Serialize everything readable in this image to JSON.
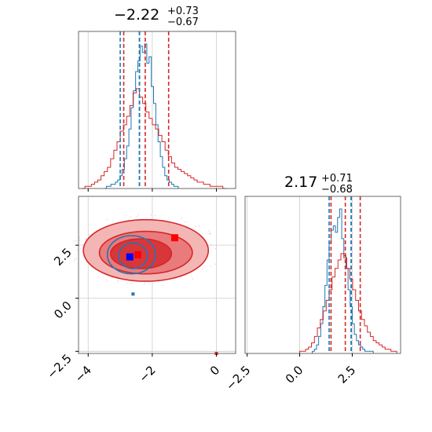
{
  "chart_data": {
    "type": "corner",
    "parameters": [
      {
        "name": "",
        "title": {
          "median": "−2.22",
          "plus": "+0.73",
          "minus": "−0.67"
        },
        "range": [
          -4.3,
          0.6
        ],
        "ticks": [
          {
            "value": -4,
            "label": "−4"
          },
          {
            "value": -2,
            "label": "−2"
          },
          {
            "value": 0,
            "label": "0"
          }
        ],
        "quantile_lines": {
          "blue": [
            -3.0,
            -2.4,
            -2.4
          ],
          "red": [
            -2.89,
            -2.22,
            -1.49
          ]
        }
      },
      {
        "name": "",
        "title": {
          "median": "2.17",
          "plus": "+0.71",
          "minus": "−0.68"
        },
        "range": [
          -2.6,
          4.8
        ],
        "ticks": [
          {
            "value": -2.5,
            "label": "−2.5"
          },
          {
            "value": 0,
            "label": "0.0"
          },
          {
            "value": 2.5,
            "label": "2.5"
          }
        ],
        "quantile_lines": {
          "blue": [
            1.4,
            2.45,
            2.45
          ],
          "red": [
            1.49,
            2.17,
            2.88
          ]
        }
      }
    ],
    "joint": {
      "x_range": [
        -4.3,
        0.6
      ],
      "y_range": [
        -2.6,
        4.8
      ],
      "y_ticks": [
        {
          "value": -2.5,
          "label": "−2.5"
        },
        {
          "value": 0,
          "label": "0.0"
        },
        {
          "value": 2.5,
          "label": "2.5"
        }
      ],
      "red_contours": [
        {
          "cx": -2.2,
          "cy": 2.25,
          "rx": 1.95,
          "ry": 1.45,
          "level": 1
        },
        {
          "cx": -2.2,
          "cy": 2.15,
          "rx": 1.45,
          "ry": 1.0,
          "level": 2
        },
        {
          "cx": -2.35,
          "cy": 2.1,
          "rx": 0.95,
          "ry": 0.7,
          "level": 3
        }
      ],
      "blue_contours": [
        {
          "cx": -2.65,
          "cy": 2.05,
          "rx": 0.75,
          "ry": 0.9
        },
        {
          "cx": -2.6,
          "cy": 2.0,
          "rx": 0.45,
          "ry": 0.6
        }
      ],
      "markers": [
        {
          "x": -2.7,
          "y": 1.95,
          "color": "blue"
        },
        {
          "x": -2.45,
          "y": 2.05,
          "color": "red"
        },
        {
          "x": -1.3,
          "y": 2.85,
          "color": "red"
        },
        {
          "x": -2.6,
          "y": 0.2,
          "color": "blue-small"
        },
        {
          "x": 0.0,
          "y": -2.6,
          "color": "red-small"
        }
      ]
    },
    "histograms": {
      "p0_blue": {
        "start": -3.5,
        "step": 0.07,
        "counts": [
          0,
          1,
          1,
          2,
          2,
          3,
          4,
          6,
          9,
          14,
          20,
          28,
          38,
          46,
          55,
          60,
          67,
          64,
          68,
          59,
          62,
          48,
          40,
          30,
          22,
          15,
          10,
          6,
          4,
          3,
          2,
          1,
          1
        ]
      },
      "p0_red": {
        "start": -4.2,
        "step": 0.1,
        "counts": [
          0,
          1,
          1,
          2,
          3,
          4,
          6,
          8,
          10,
          14,
          18,
          22,
          27,
          30,
          34,
          39,
          45,
          47,
          43,
          40,
          36,
          33,
          30,
          28,
          25,
          22,
          18,
          15,
          12,
          10,
          9,
          8,
          7,
          6,
          5,
          4,
          3,
          3,
          2,
          2,
          1,
          1,
          1,
          1,
          0
        ]
      },
      "p1_blue": {
        "start": 0.6,
        "step": 0.1,
        "counts": [
          1,
          2,
          4,
          8,
          14,
          22,
          32,
          44,
          52,
          58,
          60,
          57,
          64,
          68,
          54,
          46,
          40,
          30,
          22,
          14,
          9,
          6,
          4,
          3,
          2,
          1,
          1,
          1,
          1
        ]
      },
      "p1_red": {
        "start": 0.0,
        "step": 0.14,
        "counts": [
          1,
          1,
          2,
          3,
          5,
          8,
          12,
          16,
          20,
          25,
          30,
          36,
          40,
          44,
          47,
          45,
          40,
          35,
          30,
          25,
          20,
          16,
          13,
          10,
          8,
          6,
          5,
          4,
          3,
          2,
          2,
          1,
          1
        ]
      }
    },
    "colors": {
      "blue": "#1f77b4",
      "red": "#d62728",
      "grid": "#cccccc",
      "axis": "#444444"
    },
    "grid": true
  }
}
